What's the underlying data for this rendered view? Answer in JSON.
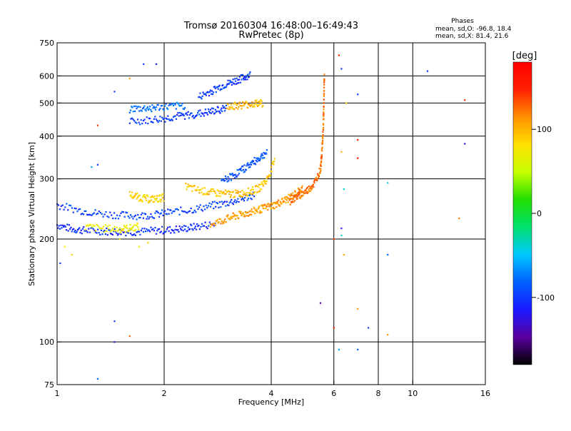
{
  "header": {
    "title_line1": "Tromsø 20160304 16:48:00–16:49:43",
    "title_line2": "RwPretec (8p)"
  },
  "stats": {
    "heading": "Phases",
    "line_o": "mean, sd,O: -96.8, 18.4",
    "line_x": "mean, sd,X:  81.4, 21.6"
  },
  "colorbar": {
    "unit_label": "[deg]",
    "ticks": [
      {
        "label": "100",
        "value": 100
      },
      {
        "label": "0",
        "value": 0
      },
      {
        "label": "-100",
        "value": -100
      }
    ],
    "range": [
      -180,
      180
    ],
    "colormap": [
      "#000000",
      "#5a00a0",
      "#1a1aff",
      "#0060ff",
      "#00c8ff",
      "#00e070",
      "#20e000",
      "#c8ff00",
      "#ffe000",
      "#ff9000",
      "#ff2000",
      "#ff0000"
    ]
  },
  "chart_data": {
    "type": "scatter",
    "xlabel": "Frequency [MHz]",
    "ylabel": "Stationary phase Virtual Height [km]",
    "xscale": "log",
    "yscale": "log",
    "xlim": [
      1,
      16
    ],
    "ylim": [
      75,
      750
    ],
    "grid": true,
    "xticks": [
      1,
      2,
      4,
      6,
      8,
      10,
      16
    ],
    "yticks": [
      75,
      100,
      200,
      300,
      400,
      500,
      600,
      750
    ],
    "xticklabels": [
      "1",
      "2",
      "4",
      "6",
      "8",
      "10",
      "16"
    ],
    "yticklabels": [
      "75",
      "100",
      "200",
      "300",
      "400",
      "500",
      "600",
      "750"
    ],
    "traces": [
      {
        "x": [
          1.0,
          1.1,
          1.2,
          1.35,
          1.5,
          1.7,
          1.9,
          2.1,
          2.3,
          2.5,
          2.8
        ],
        "y": [
          220,
          214,
          212,
          211,
          210,
          210,
          212,
          213,
          215,
          218,
          222
        ],
        "phase": -105
      },
      {
        "x": [
          1.0,
          1.15,
          1.3,
          1.5,
          1.7,
          1.9,
          2.1,
          2.4,
          2.7,
          3.0,
          3.3,
          3.6
        ],
        "y": [
          252,
          243,
          238,
          235,
          234,
          236,
          240,
          244,
          250,
          255,
          262,
          270
        ],
        "phase": -95
      },
      {
        "x": [
          1.2,
          1.35,
          1.5,
          1.6,
          1.7
        ],
        "y": [
          217,
          215,
          214,
          215,
          218
        ],
        "phase": 70
      },
      {
        "x": [
          1.6,
          1.7,
          1.8,
          1.9,
          2.0
        ],
        "y": [
          270,
          265,
          262,
          262,
          265
        ],
        "phase": 85
      },
      {
        "x": [
          2.3,
          2.5,
          2.7,
          2.9,
          3.1,
          3.3,
          3.5,
          3.7,
          3.9,
          4.1
        ],
        "y": [
          285,
          278,
          274,
          272,
          271,
          272,
          276,
          282,
          300,
          340
        ],
        "phase": 95
      },
      {
        "x": [
          2.7,
          2.9,
          3.1,
          3.3,
          3.5,
          3.7,
          3.9,
          4.1,
          4.3,
          4.5,
          4.7,
          4.9
        ],
        "y": [
          222,
          226,
          232,
          236,
          240,
          244,
          248,
          252,
          258,
          264,
          272,
          282
        ],
        "phase": 110
      },
      {
        "x": [
          4.5,
          4.7,
          4.9,
          5.1,
          5.3,
          5.5,
          5.55,
          5.6,
          5.62,
          5.64
        ],
        "y": [
          258,
          265,
          272,
          280,
          292,
          320,
          360,
          420,
          500,
          600
        ],
        "phase": 125
      },
      {
        "x": [
          2.9,
          3.1,
          3.3,
          3.5,
          3.7,
          3.9
        ],
        "y": [
          295,
          305,
          318,
          332,
          345,
          360
        ],
        "phase": -90
      },
      {
        "x": [
          1.6,
          1.8,
          2.0,
          2.2,
          2.4,
          2.6,
          2.8,
          3.0
        ],
        "y": [
          440,
          445,
          450,
          458,
          462,
          468,
          475,
          485
        ],
        "phase": -100
      },
      {
        "x": [
          2.5,
          2.7,
          2.9,
          3.1,
          3.3,
          3.5
        ],
        "y": [
          520,
          540,
          560,
          575,
          590,
          605
        ],
        "phase": -100
      },
      {
        "x": [
          3.0,
          3.2,
          3.4,
          3.6,
          3.8
        ],
        "y": [
          490,
          492,
          495,
          498,
          500
        ],
        "phase": 100
      },
      {
        "x": [
          1.6,
          1.75,
          1.9,
          2.1,
          2.3
        ],
        "y": [
          480,
          482,
          485,
          488,
          492
        ],
        "phase": -80
      }
    ],
    "points": [
      {
        "x": 1.05,
        "y": 190,
        "phase": 80
      },
      {
        "x": 1.1,
        "y": 180,
        "phase": 90
      },
      {
        "x": 1.02,
        "y": 170,
        "phase": -100
      },
      {
        "x": 1.25,
        "y": 325,
        "phase": -60
      },
      {
        "x": 1.3,
        "y": 330,
        "phase": -100
      },
      {
        "x": 1.45,
        "y": 540,
        "phase": -100
      },
      {
        "x": 1.6,
        "y": 590,
        "phase": 110
      },
      {
        "x": 1.75,
        "y": 650,
        "phase": -100
      },
      {
        "x": 1.9,
        "y": 650,
        "phase": -110
      },
      {
        "x": 1.7,
        "y": 190,
        "phase": 70
      },
      {
        "x": 1.8,
        "y": 195,
        "phase": 90
      },
      {
        "x": 1.5,
        "y": 200,
        "phase": 60
      },
      {
        "x": 1.45,
        "y": 115,
        "phase": -100
      },
      {
        "x": 1.45,
        "y": 100,
        "phase": -130
      },
      {
        "x": 1.6,
        "y": 104,
        "phase": 130
      },
      {
        "x": 1.3,
        "y": 78,
        "phase": -80
      },
      {
        "x": 1.3,
        "y": 430,
        "phase": 140
      },
      {
        "x": 6.0,
        "y": 200,
        "phase": 140
      },
      {
        "x": 6.3,
        "y": 205,
        "phase": -40
      },
      {
        "x": 6.3,
        "y": 215,
        "phase": -110
      },
      {
        "x": 6.4,
        "y": 280,
        "phase": -40
      },
      {
        "x": 6.3,
        "y": 360,
        "phase": 100
      },
      {
        "x": 6.3,
        "y": 630,
        "phase": -100
      },
      {
        "x": 6.2,
        "y": 690,
        "phase": 150
      },
      {
        "x": 6.5,
        "y": 500,
        "phase": 90
      },
      {
        "x": 7.0,
        "y": 530,
        "phase": -100
      },
      {
        "x": 7.0,
        "y": 390,
        "phase": 150
      },
      {
        "x": 7.0,
        "y": 345,
        "phase": 160
      },
      {
        "x": 6.0,
        "y": 110,
        "phase": 150
      },
      {
        "x": 6.2,
        "y": 95,
        "phase": -60
      },
      {
        "x": 7.0,
        "y": 95,
        "phase": -80
      },
      {
        "x": 7.5,
        "y": 110,
        "phase": -100
      },
      {
        "x": 7.0,
        "y": 125,
        "phase": 110
      },
      {
        "x": 8.5,
        "y": 105,
        "phase": 110
      },
      {
        "x": 8.5,
        "y": 180,
        "phase": -80
      },
      {
        "x": 8.5,
        "y": 292,
        "phase": -40
      },
      {
        "x": 5.5,
        "y": 130,
        "phase": -140
      },
      {
        "x": 11.0,
        "y": 620,
        "phase": -100
      },
      {
        "x": 14.0,
        "y": 510,
        "phase": 150
      },
      {
        "x": 14.0,
        "y": 380,
        "phase": -130
      },
      {
        "x": 13.5,
        "y": 230,
        "phase": 120
      },
      {
        "x": 6.4,
        "y": 180,
        "phase": 100
      }
    ]
  }
}
